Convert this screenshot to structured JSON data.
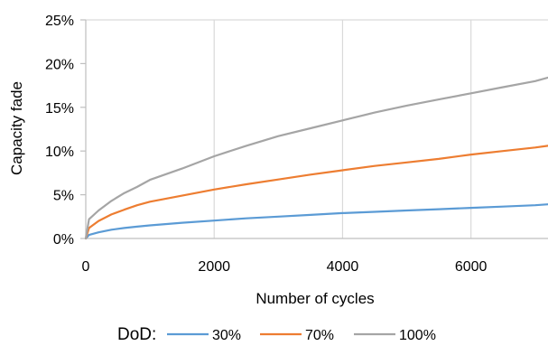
{
  "chart_data": {
    "type": "line",
    "title": "",
    "xlabel": "Number of cycles",
    "ylabel": "Capacity fade",
    "xlim": [
      0,
      7200
    ],
    "ylim": [
      0,
      25
    ],
    "x_ticks": [
      0,
      2000,
      4000,
      6000
    ],
    "x_tick_labels": [
      "0",
      "2000",
      "4000",
      "6000"
    ],
    "y_ticks": [
      0,
      5,
      10,
      15,
      20,
      25
    ],
    "y_tick_labels": [
      "0%",
      "5%",
      "10%",
      "15%",
      "20%",
      "25%"
    ],
    "grid": "vertical",
    "legend": {
      "title": "DoD:",
      "placement": "bottom"
    },
    "x": [
      0,
      50,
      200,
      400,
      600,
      800,
      1000,
      1500,
      2000,
      2500,
      3000,
      3500,
      4000,
      4500,
      5000,
      5500,
      6000,
      6500,
      7000,
      7200
    ],
    "series": [
      {
        "name": "30%",
        "color": "#5b9bd5",
        "values": [
          0,
          0.4,
          0.7,
          1.0,
          1.2,
          1.35,
          1.5,
          1.8,
          2.05,
          2.3,
          2.5,
          2.7,
          2.9,
          3.05,
          3.2,
          3.35,
          3.5,
          3.65,
          3.8,
          3.9
        ]
      },
      {
        "name": "70%",
        "color": "#ed7d31",
        "values": [
          0,
          1.2,
          2.0,
          2.75,
          3.3,
          3.8,
          4.2,
          4.9,
          5.6,
          6.2,
          6.75,
          7.3,
          7.8,
          8.3,
          8.7,
          9.1,
          9.6,
          10.0,
          10.4,
          10.6
        ]
      },
      {
        "name": "100%",
        "color": "#a5a5a5",
        "values": [
          0,
          2.2,
          3.2,
          4.3,
          5.2,
          5.9,
          6.7,
          8.0,
          9.4,
          10.6,
          11.7,
          12.6,
          13.5,
          14.4,
          15.2,
          15.9,
          16.6,
          17.3,
          18.0,
          18.4
        ]
      }
    ]
  }
}
